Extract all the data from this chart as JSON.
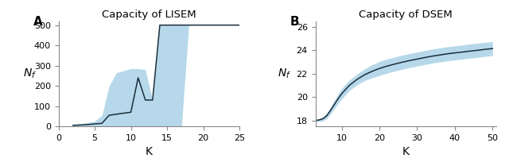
{
  "title_A": "Capacity of LISEM",
  "title_B": "Capacity of DSEM",
  "label_A": "A",
  "label_B": "B",
  "xlabel": "K",
  "lisem_K": [
    2,
    3,
    4,
    5,
    6,
    7,
    8,
    9,
    10,
    11,
    12,
    13,
    14,
    15,
    16,
    17,
    18,
    19,
    20,
    21,
    22,
    23,
    24,
    25
  ],
  "lisem_mean": [
    5,
    7,
    9,
    12,
    15,
    55,
    60,
    65,
    70,
    240,
    130,
    130,
    500,
    500,
    500,
    500,
    500,
    500,
    500,
    500,
    500,
    500,
    500,
    500
  ],
  "lisem_low": [
    0,
    0,
    0,
    0,
    0,
    0,
    0,
    0,
    0,
    0,
    0,
    0,
    0,
    0,
    0,
    0,
    500,
    500,
    500,
    500,
    500,
    500,
    500,
    500
  ],
  "lisem_high": [
    10,
    12,
    18,
    25,
    55,
    200,
    265,
    275,
    285,
    285,
    280,
    130,
    500,
    500,
    500,
    500,
    500,
    500,
    500,
    500,
    500,
    500,
    500,
    500
  ],
  "dsem_K": [
    3,
    4,
    5,
    6,
    7,
    8,
    9,
    10,
    12,
    14,
    16,
    18,
    20,
    22,
    24,
    26,
    28,
    30,
    32,
    34,
    36,
    38,
    40,
    42,
    44,
    46,
    48,
    50
  ],
  "dsem_mean": [
    18.0,
    18.05,
    18.15,
    18.4,
    18.85,
    19.35,
    19.85,
    20.3,
    21.0,
    21.5,
    21.9,
    22.2,
    22.45,
    22.65,
    22.82,
    22.98,
    23.12,
    23.25,
    23.38,
    23.5,
    23.6,
    23.7,
    23.78,
    23.85,
    23.93,
    24.0,
    24.08,
    24.15
  ],
  "dsem_low": [
    17.9,
    17.92,
    17.97,
    18.15,
    18.55,
    19.0,
    19.45,
    19.85,
    20.55,
    21.05,
    21.4,
    21.65,
    21.85,
    22.05,
    22.22,
    22.38,
    22.52,
    22.65,
    22.78,
    22.9,
    23.0,
    23.1,
    23.18,
    23.25,
    23.32,
    23.4,
    23.48,
    23.55
  ],
  "dsem_high": [
    18.1,
    18.18,
    18.33,
    18.65,
    19.15,
    19.7,
    20.25,
    20.75,
    21.45,
    21.95,
    22.4,
    22.75,
    23.05,
    23.25,
    23.42,
    23.58,
    23.72,
    23.85,
    23.98,
    24.1,
    24.2,
    24.3,
    24.38,
    24.45,
    24.54,
    24.6,
    24.68,
    24.75
  ],
  "line_color": "#1a2e3b",
  "fill_color": "#7ab8d9",
  "fill_alpha": 0.55,
  "background_color": "#ffffff",
  "lisem_xlim": [
    0,
    25
  ],
  "lisem_ylim": [
    0,
    520
  ],
  "lisem_yticks": [
    0,
    100,
    200,
    300,
    400,
    500
  ],
  "lisem_xticks": [
    0,
    5,
    10,
    15,
    20,
    25
  ],
  "dsem_xlim": [
    3,
    51
  ],
  "dsem_ylim": [
    17.5,
    26.5
  ],
  "dsem_yticks": [
    18,
    20,
    22,
    24,
    26
  ],
  "dsem_xticks": [
    10,
    20,
    30,
    40,
    50
  ]
}
